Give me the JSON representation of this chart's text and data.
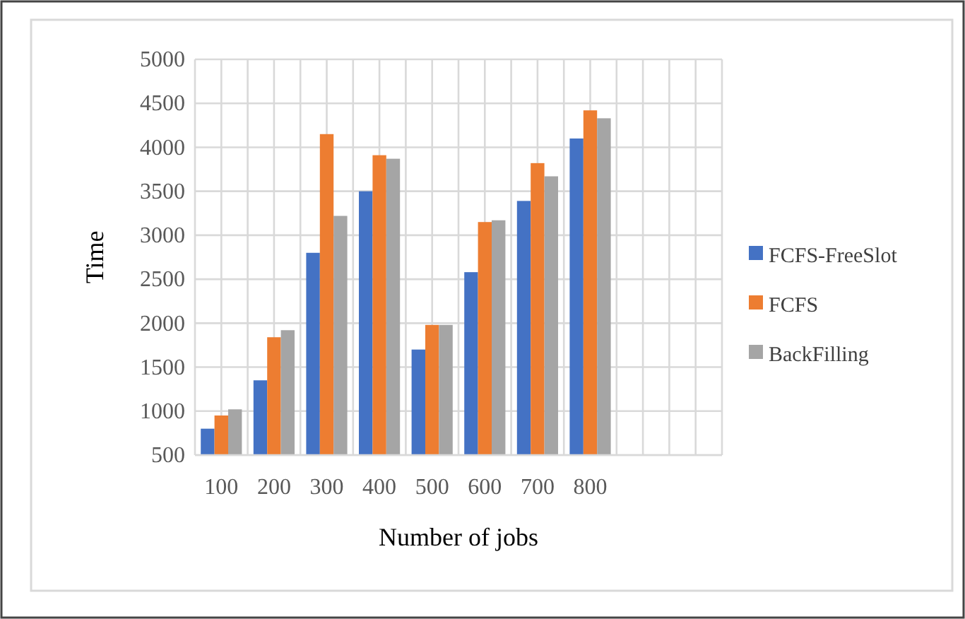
{
  "chart_data": {
    "type": "bar",
    "xlabel": "Number of jobs",
    "ylabel": "Time",
    "categories": [
      "100",
      "200",
      "300",
      "400",
      "500",
      "600",
      "700",
      "800",
      null,
      null
    ],
    "series": [
      {
        "name": "FCFS-FreeSlot",
        "color": "#4472c4",
        "values": [
          800,
          1350,
          2800,
          3500,
          1700,
          2580,
          3390,
          4100,
          null,
          null
        ]
      },
      {
        "name": "FCFS",
        "color": "#ed7d31",
        "values": [
          950,
          1840,
          4150,
          3910,
          1980,
          3150,
          3820,
          4420,
          null,
          null
        ]
      },
      {
        "name": "BackFilling",
        "color": "#a5a5a5",
        "values": [
          1020,
          1920,
          3220,
          3870,
          1980,
          3170,
          3670,
          4330,
          null,
          null
        ]
      }
    ],
    "ylim": [
      500,
      5000
    ],
    "yticks": [
      500,
      1000,
      1500,
      2000,
      2500,
      3000,
      3500,
      4000,
      4500,
      5000
    ],
    "grid": true,
    "legend": "right"
  }
}
